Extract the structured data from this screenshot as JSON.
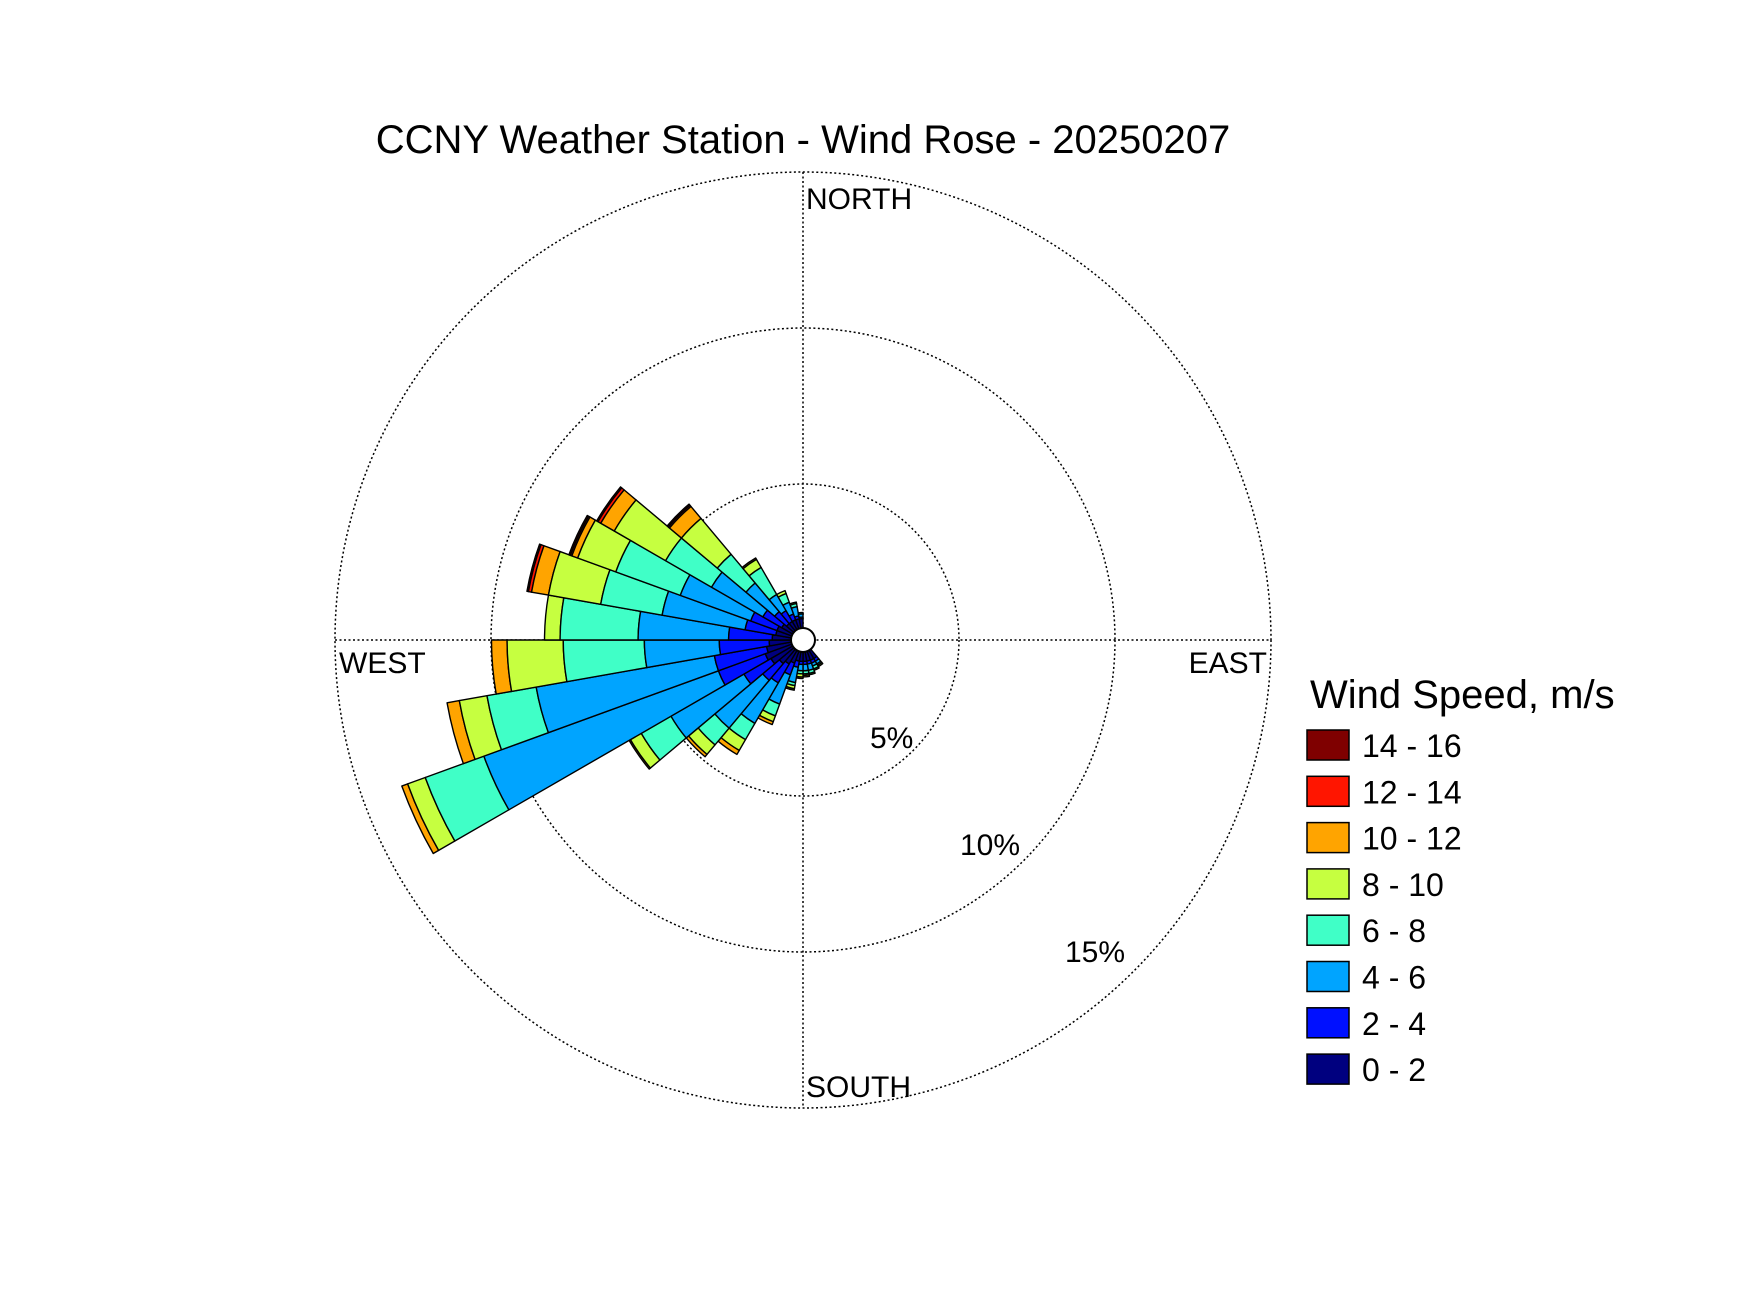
{
  "chart_data": {
    "type": "wind_rose",
    "title": "CCNY Weather Station - Wind Rose - 20250207",
    "direction_labels": {
      "north": "NORTH",
      "east": "EAST",
      "south": "SOUTH",
      "west": "WEST"
    },
    "ring_values": [
      5,
      10,
      15
    ],
    "ring_labels": [
      "5%",
      "10%",
      "15%"
    ],
    "rmax": 15,
    "legend_title": "Wind Speed, m/s",
    "speed_bins": [
      {
        "label": "0 - 2",
        "color": "#00007f"
      },
      {
        "label": "2 - 4",
        "color": "#0010ff"
      },
      {
        "label": "4 - 6",
        "color": "#00a4ff"
      },
      {
        "label": "6 - 8",
        "color": "#40ffc7"
      },
      {
        "label": "8 - 10",
        "color": "#c6ff40"
      },
      {
        "label": "10 - 12",
        "color": "#ffa400"
      },
      {
        "label": "12 - 14",
        "color": "#ff1500"
      },
      {
        "label": "14 - 16",
        "color": "#7f0000"
      }
    ],
    "sector_width_deg": 10,
    "sectors": [
      {
        "direction": 145,
        "cumulative": [
          0.3,
          0.4,
          0.5,
          0.55,
          0.6,
          0.6,
          0.6,
          0.6
        ]
      },
      {
        "direction": 155,
        "cumulative": [
          0.3,
          0.4,
          0.5,
          0.6,
          0.65,
          0.65,
          0.65,
          0.65
        ]
      },
      {
        "direction": 165,
        "cumulative": [
          0.3,
          0.4,
          0.6,
          0.7,
          0.75,
          0.75,
          0.75,
          0.75
        ]
      },
      {
        "direction": 175,
        "cumulative": [
          0.3,
          0.4,
          0.6,
          0.7,
          0.75,
          0.8,
          0.8,
          0.8
        ]
      },
      {
        "direction": 185,
        "cumulative": [
          0.3,
          0.4,
          0.6,
          0.7,
          0.8,
          0.85,
          0.85,
          0.85
        ]
      },
      {
        "direction": 195,
        "cumulative": [
          0.3,
          0.5,
          1.0,
          1.1,
          1.2,
          1.25,
          1.25,
          1.25
        ]
      },
      {
        "direction": 205,
        "cumulative": [
          0.4,
          0.8,
          1.8,
          2.2,
          2.4,
          2.5,
          2.5,
          2.5
        ]
      },
      {
        "direction": 215,
        "cumulative": [
          0.5,
          1.2,
          2.7,
          3.3,
          3.7,
          3.85,
          3.85,
          3.85
        ]
      },
      {
        "direction": 225,
        "cumulative": [
          0.6,
          1.3,
          3.3,
          4.0,
          4.4,
          4.5,
          4.5,
          4.5
        ]
      },
      {
        "direction": 235,
        "cumulative": [
          0.8,
          1.8,
          4.5,
          5.6,
          6.0,
          6.05,
          6.05,
          6.05
        ]
      },
      {
        "direction": 245,
        "cumulative": [
          0.9,
          2.5,
          10.5,
          12.5,
          13.1,
          13.3,
          13.3,
          13.3
        ]
      },
      {
        "direction": 255,
        "cumulative": [
          0.8,
          2.5,
          8.3,
          9.9,
          10.8,
          11.2,
          11.2,
          11.2
        ]
      },
      {
        "direction": 265,
        "cumulative": [
          0.7,
          2.3,
          4.7,
          7.3,
          9.1,
          9.6,
          9.6,
          9.6
        ]
      },
      {
        "direction": 275,
        "cumulative": [
          0.6,
          2.0,
          4.9,
          7.4,
          7.9,
          7.9,
          7.9,
          7.9
        ]
      },
      {
        "direction": 285,
        "cumulative": [
          0.5,
          1.5,
          4.2,
          6.2,
          7.9,
          8.45,
          8.55,
          8.6
        ]
      },
      {
        "direction": 295,
        "cumulative": [
          0.5,
          1.4,
          3.8,
          6.0,
          7.3,
          7.5,
          7.55,
          7.6
        ]
      },
      {
        "direction": 305,
        "cumulative": [
          0.4,
          1.1,
          3.0,
          4.7,
          6.6,
          7.1,
          7.2,
          7.25
        ]
      },
      {
        "direction": 315,
        "cumulative": [
          0.3,
          0.8,
          2.0,
          3.2,
          4.7,
          5.2,
          5.25,
          5.3
        ]
      },
      {
        "direction": 325,
        "cumulative": [
          0.3,
          0.7,
          1.3,
          2.3,
          2.6,
          2.65,
          2.65,
          2.65
        ]
      },
      {
        "direction": 335,
        "cumulative": [
          0.3,
          0.5,
          0.9,
          1.2,
          1.3,
          1.3,
          1.3,
          1.3
        ]
      },
      {
        "direction": 345,
        "cumulative": [
          0.3,
          0.4,
          0.7,
          0.8,
          0.85,
          0.85,
          0.85,
          0.85
        ]
      },
      {
        "direction": 355,
        "cumulative": [
          0.3,
          0.35,
          0.45,
          0.5,
          0.5,
          0.5,
          0.5,
          0.5
        ]
      }
    ]
  }
}
